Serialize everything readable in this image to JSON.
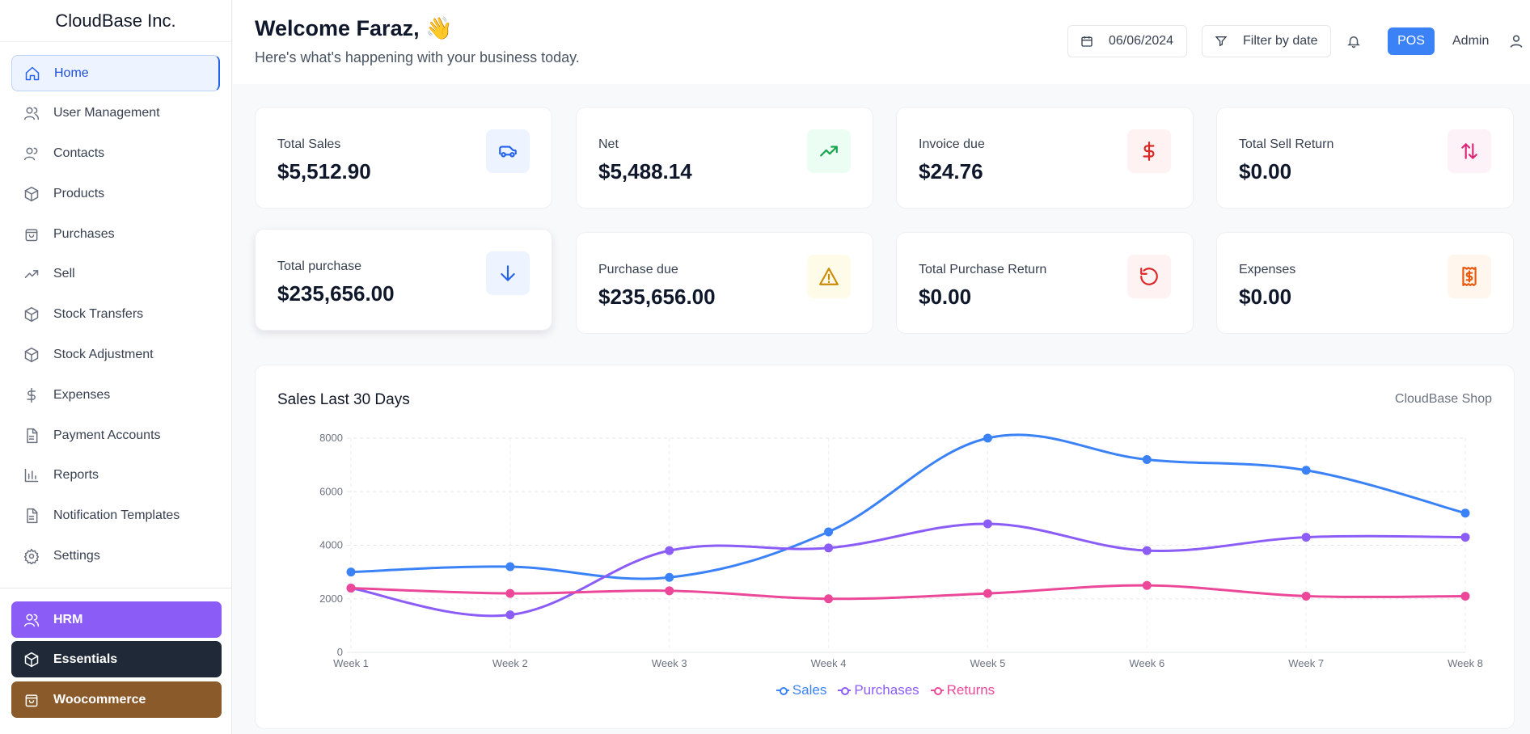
{
  "brand": "CloudBase Inc.",
  "nav": [
    {
      "label": "Home",
      "icon": "home-icon",
      "active": true
    },
    {
      "label": "User Management",
      "icon": "users-icon"
    },
    {
      "label": "Contacts",
      "icon": "contacts-icon"
    },
    {
      "label": "Products",
      "icon": "box-icon"
    },
    {
      "label": "Purchases",
      "icon": "bag-icon"
    },
    {
      "label": "Sell",
      "icon": "trend-icon"
    },
    {
      "label": "Stock Transfers",
      "icon": "box-icon"
    },
    {
      "label": "Stock Adjustment",
      "icon": "box-icon"
    },
    {
      "label": "Expenses",
      "icon": "dollar-icon"
    },
    {
      "label": "Payment Accounts",
      "icon": "document-icon"
    },
    {
      "label": "Reports",
      "icon": "bar-chart-icon"
    },
    {
      "label": "Notification Templates",
      "icon": "document-icon"
    },
    {
      "label": "Settings",
      "icon": "gear-icon"
    }
  ],
  "modules": [
    {
      "label": "HRM",
      "color": "#8b5cf6",
      "icon": "users-icon"
    },
    {
      "label": "Essentials",
      "color": "#1f2937",
      "icon": "box-icon"
    },
    {
      "label": "Woocommerce",
      "color": "#8a5a2b",
      "icon": "bag-icon"
    }
  ],
  "header": {
    "welcome": "Welcome Faraz,",
    "wave": "👋",
    "subtitle": "Here's what's happening with your business today.",
    "date": "06/06/2024",
    "filter_label": "Filter by date",
    "pos_label": "POS",
    "user_label": "Admin"
  },
  "stats": [
    {
      "label": "Total Sales",
      "value": "$5,512.90",
      "icon": "truck-icon",
      "color": "#2563eb",
      "bg": "#eef4ff"
    },
    {
      "label": "Net",
      "value": "$5,488.14",
      "icon": "trending-up-icon",
      "color": "#16a34a",
      "bg": "#ecfdf3"
    },
    {
      "label": "Invoice due",
      "value": "$24.76",
      "icon": "dollar-icon",
      "color": "#dc2626",
      "bg": "#fef2f2"
    },
    {
      "label": "Total Sell Return",
      "value": "$0.00",
      "icon": "swap-icon",
      "color": "#db2777",
      "bg": "#fdf2f8"
    },
    {
      "label": "Total purchase",
      "value": "$235,656.00",
      "icon": "arrow-down-icon",
      "color": "#2563eb",
      "bg": "#eef4ff"
    },
    {
      "label": "Purchase due",
      "value": "$235,656.00",
      "icon": "warning-icon",
      "color": "#ca8a04",
      "bg": "#fefce8"
    },
    {
      "label": "Total Purchase Return",
      "value": "$0.00",
      "icon": "undo-icon",
      "color": "#dc2626",
      "bg": "#fef2f2"
    },
    {
      "label": "Expenses",
      "value": "$0.00",
      "icon": "receipt-icon",
      "color": "#ea580c",
      "bg": "#fff7ed"
    }
  ],
  "chart_panel": {
    "title": "Sales Last 30 Days",
    "shop": "CloudBase Shop"
  },
  "chart_data": {
    "type": "line",
    "title": "Sales Last 30 Days",
    "categories": [
      "Week 1",
      "Week 2",
      "Week 3",
      "Week 4",
      "Week 5",
      "Week 6",
      "Week 7",
      "Week 8"
    ],
    "ylim": [
      0,
      8000
    ],
    "yticks": [
      0,
      2000,
      4000,
      6000,
      8000
    ],
    "grid": true,
    "legend": "bottom-center",
    "series": [
      {
        "name": "Sales",
        "color": "#3b82f6",
        "values": [
          3000,
          3200,
          2800,
          4500,
          8000,
          7200,
          6800,
          5200
        ]
      },
      {
        "name": "Purchases",
        "color": "#8b5cf6",
        "values": [
          2400,
          1400,
          3800,
          3900,
          4800,
          3800,
          4300,
          4300
        ]
      },
      {
        "name": "Returns",
        "color": "#ec4899",
        "values": [
          2400,
          2200,
          2300,
          2000,
          2200,
          2500,
          2100,
          2100
        ]
      }
    ]
  }
}
